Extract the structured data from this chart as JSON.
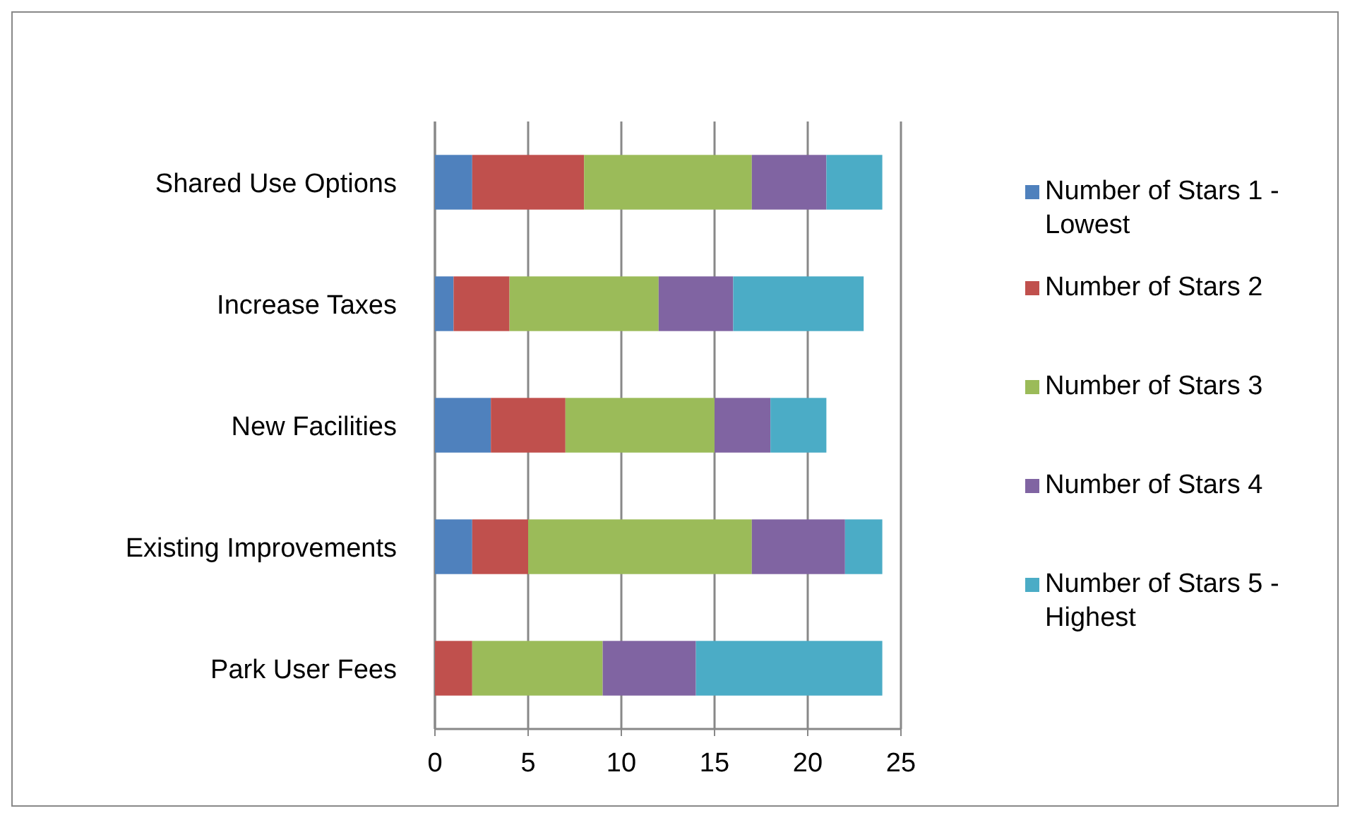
{
  "chart_data": {
    "type": "bar",
    "orientation": "horizontal",
    "stacked": true,
    "categories": [
      "Shared Use Options",
      "Increase Taxes",
      "New Facilities",
      "Existing Improvements",
      "Park User Fees"
    ],
    "series": [
      {
        "name": "Number of Stars 1 - Lowest",
        "color": "#4f81bd",
        "values": [
          2,
          1,
          3,
          2,
          0
        ]
      },
      {
        "name": "Number of Stars 2",
        "color": "#c0504d",
        "values": [
          6,
          3,
          4,
          3,
          2
        ]
      },
      {
        "name": "Number of Stars 3",
        "color": "#9bbb59",
        "values": [
          9,
          8,
          8,
          12,
          7
        ]
      },
      {
        "name": "Number of Stars 4",
        "color": "#8064a2",
        "values": [
          4,
          4,
          3,
          5,
          5
        ]
      },
      {
        "name": "Number of Stars 5 - Highest",
        "color": "#4bacc6",
        "values": [
          3,
          7,
          3,
          2,
          10
        ]
      }
    ],
    "xlim": [
      0,
      25
    ],
    "xticks": [
      0,
      5,
      10,
      15,
      20,
      25
    ],
    "grid": "x",
    "legend": "right"
  }
}
